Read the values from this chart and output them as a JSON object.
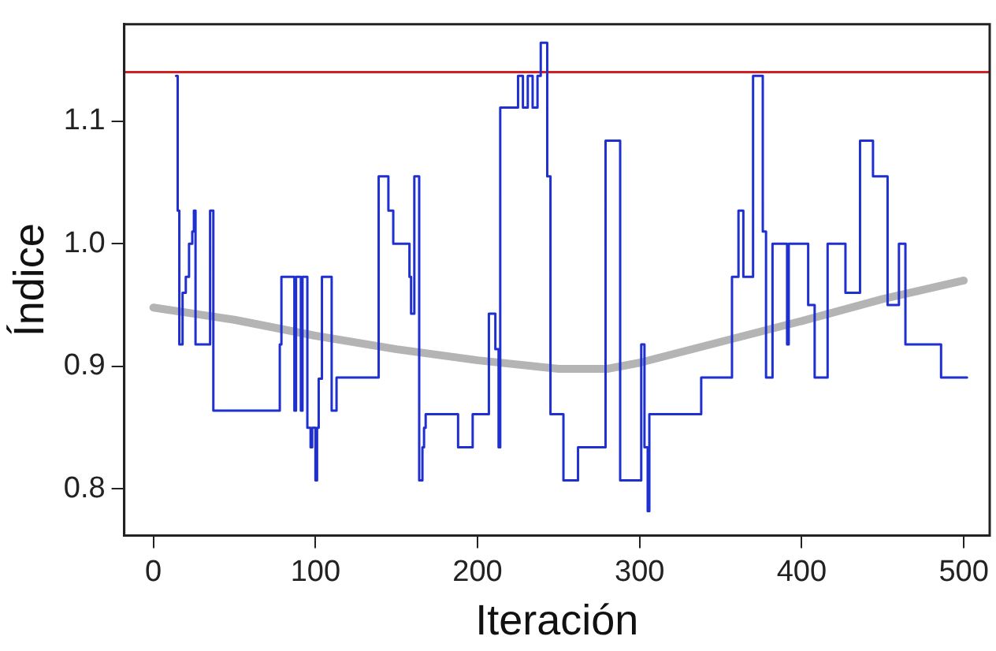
{
  "chart_data": {
    "type": "step",
    "xlabel": "Iteración",
    "ylabel": "Índice",
    "xlim": [
      -18,
      516
    ],
    "ylim": [
      0.762,
      1.179
    ],
    "xticks": [
      0,
      100,
      200,
      300,
      400,
      500
    ],
    "yticks": [
      0.8,
      0.9,
      {
        "value": 1.0,
        "label": "1.0"
      },
      1.1
    ],
    "grid": false,
    "legend": false,
    "marker": "none",
    "series": [
      {
        "type": "step",
        "color": "#1f2fd0",
        "x": [
          14,
          15,
          16,
          18,
          20,
          22,
          24,
          25,
          26,
          35,
          37,
          78,
          79,
          87,
          88,
          91,
          92,
          95,
          97,
          98,
          100,
          101,
          102,
          104,
          110,
          113,
          139,
          145,
          148,
          158,
          159,
          161,
          164,
          166,
          167,
          168,
          188,
          197,
          207,
          211,
          213,
          214,
          225,
          228,
          231,
          234,
          237,
          239,
          243,
          245,
          253,
          262,
          279,
          288,
          301,
          303,
          305,
          306,
          338,
          357,
          361,
          364,
          370,
          376,
          378,
          382,
          391,
          392,
          404,
          408,
          416,
          427,
          436,
          444,
          453,
          460,
          464,
          486,
          502
        ],
        "values": [
          1.137,
          1.027,
          0.918,
          0.96,
          0.973,
          1.0,
          1.01,
          1.027,
          0.918,
          1.027,
          0.864,
          0.918,
          0.973,
          0.864,
          0.973,
          0.864,
          0.973,
          0.85,
          0.834,
          0.85,
          0.807,
          0.85,
          0.89,
          0.973,
          0.864,
          0.891,
          1.055,
          1.027,
          1.0,
          0.973,
          0.943,
          1.055,
          0.807,
          0.834,
          0.85,
          0.861,
          0.834,
          0.861,
          0.943,
          0.914,
          0.834,
          1.111,
          1.137,
          1.111,
          1.137,
          1.111,
          1.137,
          1.164,
          1.055,
          0.861,
          0.807,
          0.834,
          1.084,
          0.807,
          0.918,
          0.834,
          0.782,
          0.861,
          0.891,
          0.973,
          1.027,
          0.973,
          1.137,
          1.01,
          0.891,
          1.0,
          0.918,
          1.0,
          0.95,
          0.891,
          1.0,
          0.96,
          1.084,
          1.055,
          0.95,
          1.0,
          0.918,
          0.891,
          0.891
        ]
      },
      {
        "type": "line",
        "color": "#b4b4b4",
        "x": [
          0,
          50,
          100,
          150,
          200,
          250,
          280,
          300,
          350,
          400,
          450,
          500
        ],
        "values": [
          0.948,
          0.938,
          0.925,
          0.914,
          0.905,
          0.898,
          0.898,
          0.903,
          0.92,
          0.937,
          0.955,
          0.97
        ]
      }
    ],
    "ref_lines": [
      {
        "axis": "y",
        "value": 1.14,
        "color": "#d42020"
      }
    ]
  }
}
